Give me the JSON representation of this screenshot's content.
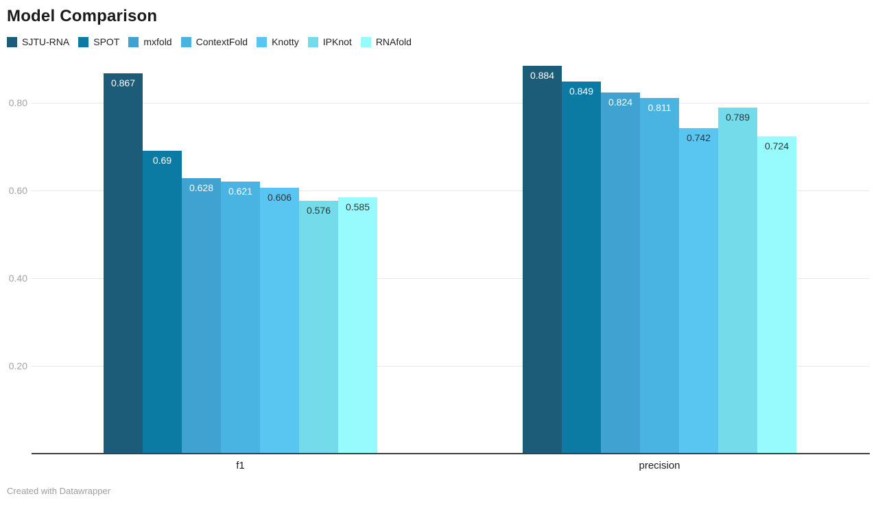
{
  "title": "Model Comparison",
  "footer": "Created with Datawrapper",
  "chart_data": {
    "type": "bar",
    "title": "Model Comparison",
    "categories": [
      "f1",
      "precision"
    ],
    "series": [
      {
        "name": "SJTU-RNA",
        "color": "#1d5c78",
        "label_color": "#ffffff",
        "values": [
          0.867,
          0.884
        ]
      },
      {
        "name": "SPOT",
        "color": "#0c7ba3",
        "label_color": "#ffffff",
        "values": [
          0.69,
          0.849
        ]
      },
      {
        "name": "mxfold",
        "color": "#3fa2d0",
        "label_color": "#ffffff",
        "values": [
          0.628,
          0.824
        ]
      },
      {
        "name": "ContextFold",
        "color": "#49b3e2",
        "label_color": "#ffffff",
        "values": [
          0.621,
          0.811
        ]
      },
      {
        "name": "Knotty",
        "color": "#59c6f2",
        "label_color": "#333333",
        "values": [
          0.606,
          0.742
        ]
      },
      {
        "name": "IPKnot",
        "color": "#74dbea",
        "label_color": "#333333",
        "values": [
          0.576,
          0.789
        ]
      },
      {
        "name": "RNAfold",
        "color": "#97fbfe",
        "label_color": "#333333",
        "values": [
          0.585,
          0.724
        ]
      }
    ],
    "y_ticks": [
      {
        "label": "0.20",
        "value": 0.2
      },
      {
        "label": "0.40",
        "value": 0.4
      },
      {
        "label": "0.60",
        "value": 0.6
      },
      {
        "label": "0.80",
        "value": 0.8
      }
    ],
    "ylim": [
      0,
      0.9
    ],
    "xlabel": "",
    "ylabel": "",
    "grid": true,
    "legend_position": "top"
  }
}
